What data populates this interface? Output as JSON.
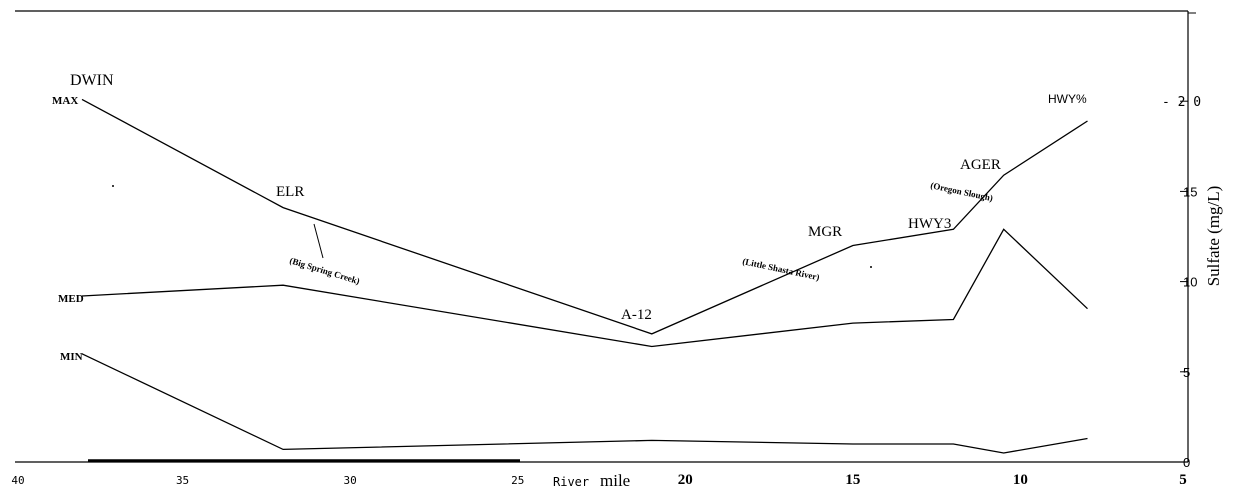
{
  "chart_data": {
    "type": "line",
    "x": [
      38,
      32,
      21,
      15,
      12,
      10.5,
      8
    ],
    "series": [
      {
        "name": "MAX",
        "values": [
          20.1,
          14.1,
          7.1,
          12.0,
          12.9,
          15.9,
          18.9
        ]
      },
      {
        "name": "MED",
        "values": [
          9.2,
          9.8,
          6.4,
          7.7,
          7.9,
          12.9,
          8.5
        ]
      },
      {
        "name": "MIN",
        "values": [
          6.0,
          0.7,
          1.2,
          1.0,
          1.0,
          0.5,
          1.3
        ]
      }
    ],
    "xlabel_prefix": "River",
    "xlabel": "mile",
    "ylabel": "Sulfate (mg/L)",
    "xlim": [
      40,
      5
    ],
    "ylim": [
      0,
      25
    ],
    "x_ticks": [
      "40",
      "35",
      "30",
      "25",
      "20",
      "15",
      "10",
      "5"
    ],
    "y_ticks": [
      "0",
      "5",
      "10",
      "15",
      "- 2 0"
    ],
    "grid": false,
    "site_labels": [
      "DWIN",
      "ELR",
      "A-12",
      "MGR",
      "HWY3",
      "AGER",
      "HWY%"
    ],
    "annotations": [
      "(Big Spring Creek)",
      "(Little Shasta River)",
      "(Oregon Slough)"
    ]
  }
}
